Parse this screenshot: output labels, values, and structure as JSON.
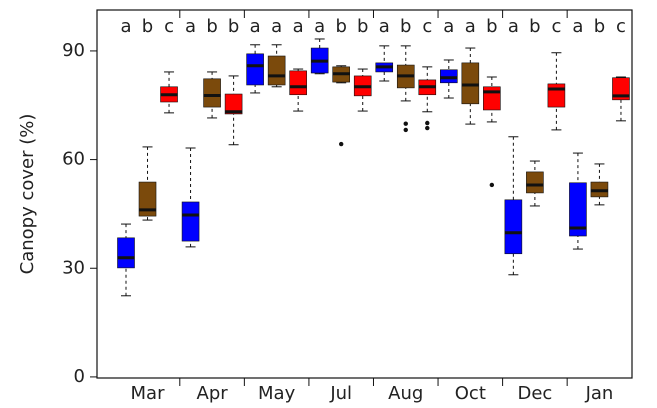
{
  "chart_data": {
    "type": "box",
    "y_label": "Canopy cover (%)",
    "categories": [
      "Mar",
      "Apr",
      "May",
      "Jul",
      "Aug",
      "Oct",
      "Dec",
      "Jan"
    ],
    "letters": [
      [
        "a",
        "b",
        "c"
      ],
      [
        "a",
        "b",
        "b"
      ],
      [
        "a",
        "a",
        "a"
      ],
      [
        "a",
        "b",
        "b"
      ],
      [
        "a",
        "b",
        "c"
      ],
      [
        "a",
        "a",
        "b"
      ],
      [
        "a",
        "b",
        "c"
      ],
      [
        "a",
        "b",
        "c"
      ]
    ],
    "ylim": [
      -0.3,
      101.3
    ],
    "yticks": [
      0,
      30,
      60,
      90
    ],
    "series": [
      {
        "color": "#0000ff",
        "boxes": [
          {
            "low": 22.4,
            "q1": 30.1,
            "median": 32.9,
            "q3": 38.4,
            "high": 42.2
          },
          {
            "low": 35.9,
            "q1": 37.5,
            "median": 44.7,
            "q3": 48.3,
            "high": 63.2
          },
          {
            "low": 78.4,
            "q1": 80.6,
            "median": 85.9,
            "q3": 89.2,
            "high": 91.7
          },
          {
            "low": 83.7,
            "q1": 83.9,
            "median": 87.2,
            "q3": 90.8,
            "high": 93.3
          },
          {
            "low": 81.7,
            "q1": 84.2,
            "median": 85.6,
            "q3": 86.7,
            "high": 91.4
          },
          {
            "low": 77.0,
            "q1": 81.2,
            "median": 82.6,
            "q3": 84.8,
            "high": 87.5
          },
          {
            "low": 28.2,
            "q1": 34.0,
            "median": 39.8,
            "q3": 48.9,
            "high": 66.3
          },
          {
            "low": 35.3,
            "q1": 38.9,
            "median": 41.1,
            "q3": 53.6,
            "high": 61.8
          }
        ]
      },
      {
        "color": "#7b4a0c",
        "boxes": [
          {
            "low": 43.3,
            "q1": 44.4,
            "median": 46.1,
            "q3": 53.8,
            "high": 63.5
          },
          {
            "low": 71.5,
            "q1": 74.5,
            "median": 77.7,
            "q3": 82.3,
            "high": 84.2
          },
          {
            "low": 80.1,
            "q1": 80.6,
            "median": 83.1,
            "q3": 88.6,
            "high": 91.7
          },
          {
            "low": 81.2,
            "q1": 81.4,
            "median": 83.7,
            "q3": 85.6,
            "high": 85.9,
            "outliers": [
              64.3
            ]
          },
          {
            "low": 76.2,
            "q1": 79.8,
            "median": 83.1,
            "q3": 86.1,
            "high": 91.4,
            "outliers": [
              69.9,
              68.2
            ]
          },
          {
            "low": 69.8,
            "q1": 75.4,
            "median": 80.6,
            "q3": 86.7,
            "high": 90.8
          },
          {
            "low": 47.2,
            "q1": 50.8,
            "median": 53.0,
            "q3": 56.6,
            "high": 59.6
          },
          {
            "low": 47.5,
            "q1": 49.7,
            "median": 51.4,
            "q3": 53.8,
            "high": 58.8
          }
        ]
      },
      {
        "color": "#ff0000",
        "boxes": [
          {
            "low": 72.9,
            "q1": 75.9,
            "median": 77.9,
            "q3": 80.1,
            "high": 84.2
          },
          {
            "low": 64.1,
            "q1": 72.6,
            "median": 73.2,
            "q3": 78.1,
            "high": 83.1
          },
          {
            "low": 73.4,
            "q1": 77.9,
            "median": 80.1,
            "q3": 84.5,
            "high": 85.0
          },
          {
            "low": 73.4,
            "q1": 77.6,
            "median": 80.1,
            "q3": 83.1,
            "high": 85.0
          },
          {
            "low": 73.2,
            "q1": 77.9,
            "median": 80.1,
            "q3": 82.0,
            "high": 85.6,
            "outliers": [
              70.1,
              68.7
            ]
          },
          {
            "low": 70.4,
            "q1": 73.7,
            "median": 78.7,
            "q3": 80.1,
            "high": 82.8,
            "outliers": [
              53.0
            ]
          },
          {
            "low": 68.2,
            "q1": 74.5,
            "median": 79.5,
            "q3": 80.9,
            "high": 89.5
          },
          {
            "low": 70.7,
            "q1": 76.5,
            "median": 77.6,
            "q3": 82.6,
            "high": 82.8
          }
        ]
      }
    ]
  }
}
